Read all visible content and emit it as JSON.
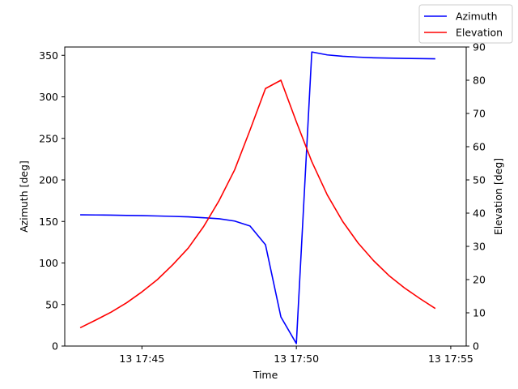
{
  "chart_data": {
    "type": "line",
    "title": "",
    "xlabel": "Time",
    "ylabel_left": "Azimuth [deg]",
    "ylabel_right": "Elevation [deg]",
    "x_tick_labels": [
      "13 17:45",
      "13 17:50",
      "13 17:55"
    ],
    "x_ticks": [
      "17:45",
      "17:50",
      "17:55"
    ],
    "xlim": [
      "17:42:30",
      "17:55:30"
    ],
    "y_left_ticks": [
      0,
      50,
      100,
      150,
      200,
      250,
      300,
      350
    ],
    "y_left_lim": [
      0,
      360
    ],
    "y_right_ticks": [
      0,
      10,
      20,
      30,
      40,
      50,
      60,
      70,
      80,
      90
    ],
    "y_right_lim": [
      0,
      90
    ],
    "grid": false,
    "legend_position": "top-right",
    "series": [
      {
        "name": "Azimuth",
        "axis": "left",
        "color": "#0000ff",
        "x": [
          "17:43:00",
          "17:43:30",
          "17:44:00",
          "17:44:30",
          "17:45:00",
          "17:45:30",
          "17:46:00",
          "17:46:30",
          "17:47:00",
          "17:47:30",
          "17:48:00",
          "17:48:30",
          "17:49:00",
          "17:49:30",
          "17:50:00",
          "17:50:30",
          "17:51:00",
          "17:51:30",
          "17:52:00",
          "17:52:30",
          "17:53:00",
          "17:53:30",
          "17:54:00",
          "17:54:30"
        ],
        "values": [
          158,
          157.8,
          157.6,
          157.3,
          157,
          156.6,
          156.1,
          155.5,
          154.5,
          153.2,
          150.5,
          144.5,
          122,
          35,
          3,
          354,
          350.5,
          348.8,
          347.8,
          347,
          346.6,
          346.3,
          346,
          345.8
        ]
      },
      {
        "name": "Elevation",
        "axis": "right",
        "color": "#ff0000",
        "x": [
          "17:43:00",
          "17:43:30",
          "17:44:00",
          "17:44:30",
          "17:45:00",
          "17:45:30",
          "17:46:00",
          "17:46:30",
          "17:47:00",
          "17:47:30",
          "17:48:00",
          "17:48:30",
          "17:49:00",
          "17:49:30",
          "17:50:00",
          "17:50:30",
          "17:51:00",
          "17:51:30",
          "17:52:00",
          "17:52:30",
          "17:53:00",
          "17:53:30",
          "17:54:00",
          "17:54:30"
        ],
        "values": [
          5.5,
          7.8,
          10.2,
          13,
          16.3,
          20,
          24.5,
          29.5,
          36,
          43.8,
          53,
          65,
          77.5,
          80,
          67.5,
          55.5,
          45.5,
          37.5,
          31,
          25.7,
          21.2,
          17.5,
          14.3,
          11.3
        ]
      }
    ]
  }
}
